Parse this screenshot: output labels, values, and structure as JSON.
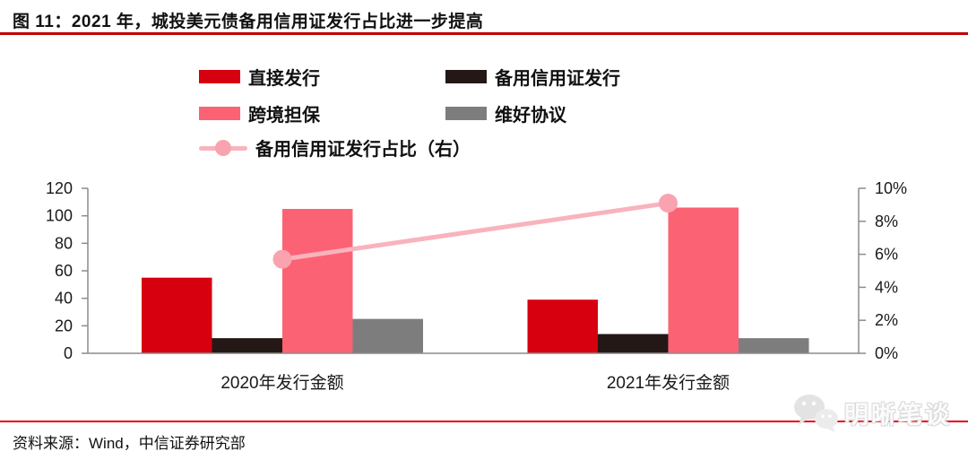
{
  "figure": {
    "title": "图 11：2021 年，城投美元债备用信用证发行占比进一步提高",
    "source": "资料来源：Wind，中信证券研究部",
    "watermark": "明晰笔谈"
  },
  "ui": {
    "title_rule_color": "#c00000",
    "source_rule_color": "#e60012",
    "axis_color": "#8c8c8c",
    "text_color": "#1a1a1a",
    "watermark_gray": "#e3e3e3"
  },
  "chart_data": {
    "type": "bar",
    "title": "",
    "categories": [
      "2020年发行金额",
      "2021年发行金额"
    ],
    "series": [
      {
        "name": "直接发行",
        "type": "bar",
        "color": "#d7000f",
        "values": [
          55,
          39
        ]
      },
      {
        "name": "备用信用证发行",
        "type": "bar",
        "color": "#231815",
        "values": [
          11,
          14
        ]
      },
      {
        "name": "跨境担保",
        "type": "bar",
        "color": "#fb6374",
        "values": [
          105,
          106
        ]
      },
      {
        "name": "维好协议",
        "type": "bar",
        "color": "#7d7d7d",
        "values": [
          25,
          11
        ]
      }
    ],
    "line_series": {
      "name": "备用信用证发行占比（右）",
      "type": "line",
      "axis": "right",
      "color": "#f9b3bc",
      "marker_color": "#f8a3af",
      "values_pct": [
        5.7,
        9.1
      ]
    },
    "left_axis": {
      "min": 0,
      "max": 120,
      "step": 20,
      "ticks": [
        "0",
        "20",
        "40",
        "60",
        "80",
        "100",
        "120"
      ]
    },
    "right_axis": {
      "min": 0,
      "max": 10,
      "step": 2,
      "ticks": [
        "0%",
        "2%",
        "4%",
        "6%",
        "8%",
        "10%"
      ]
    },
    "grid": false,
    "legend_position": "top"
  }
}
